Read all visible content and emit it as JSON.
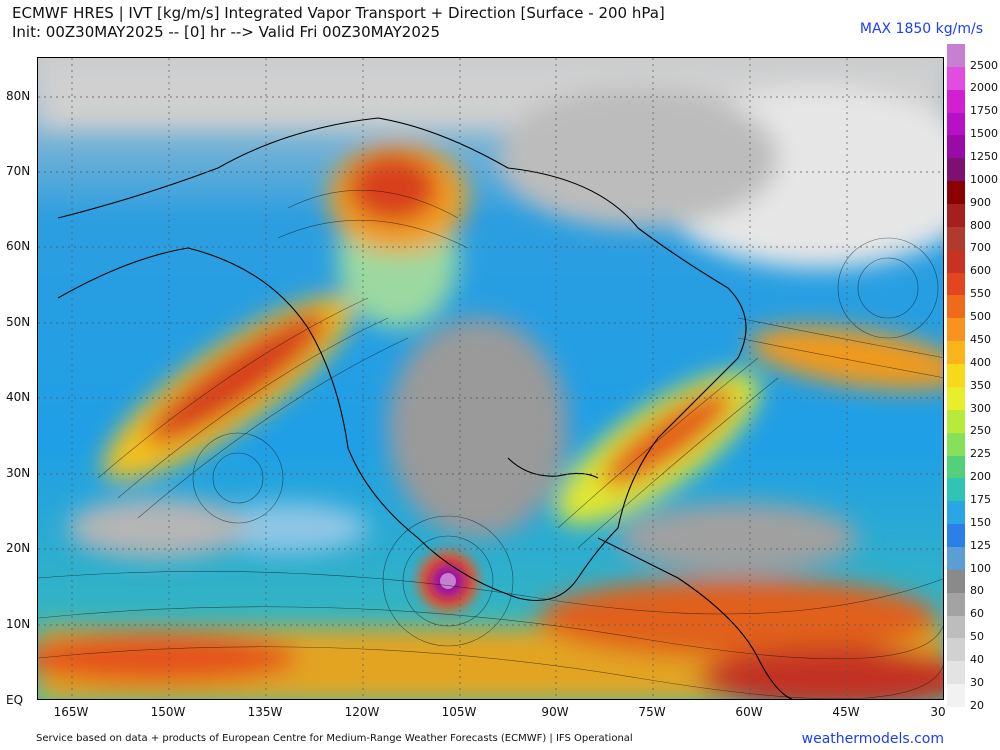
{
  "header": {
    "line1": "ECMWF HRES | IVT [kg/m/s] Integrated Vapor Transport + Direction [Surface - 200 hPa]",
    "line2": "Init: 00Z30MAY2025 -- [0] hr --> Valid Fri 00Z30MAY2025",
    "max": "MAX 1850 kg/m/s"
  },
  "lat_labels": [
    "80N",
    "70N",
    "60N",
    "50N",
    "40N",
    "30N",
    "20N",
    "10N",
    "EQ"
  ],
  "lon_labels": [
    "165W",
    "150W",
    "135W",
    "120W",
    "105W",
    "90W",
    "75W",
    "60W",
    "45W",
    "30"
  ],
  "colorbar": {
    "labels": [
      "2500",
      "2000",
      "1750",
      "1500",
      "1250",
      "1000",
      "900",
      "800",
      "700",
      "600",
      "550",
      "500",
      "450",
      "400",
      "350",
      "300",
      "250",
      "225",
      "200",
      "175",
      "150",
      "125",
      "100",
      "80",
      "60",
      "50",
      "40",
      "30",
      "20"
    ],
    "colors": [
      "#c67fd1",
      "#e04de0",
      "#d11fd1",
      "#b810c7",
      "#9a0aa8",
      "#7e0f73",
      "#8b0000",
      "#a51f1f",
      "#b03a2e",
      "#c83222",
      "#e4441e",
      "#f06a1c",
      "#f7931e",
      "#fbb51b",
      "#f7d81a",
      "#e8ef2a",
      "#b8ea3a",
      "#86e05a",
      "#52d07a",
      "#2fc4b4",
      "#2aa6e6",
      "#2b7fe8",
      "#5b9ed6",
      "#8a8a8a",
      "#a3a3a3",
      "#bdbdbd",
      "#d1d1d1",
      "#e3e3e3",
      "#f2f2f2"
    ]
  },
  "footer": {
    "credit": "Service based on data + products of European Centre for Medium-Range Weather Forecasts (ECMWF) | IFS Operational",
    "brand": "weathermodels.com"
  }
}
